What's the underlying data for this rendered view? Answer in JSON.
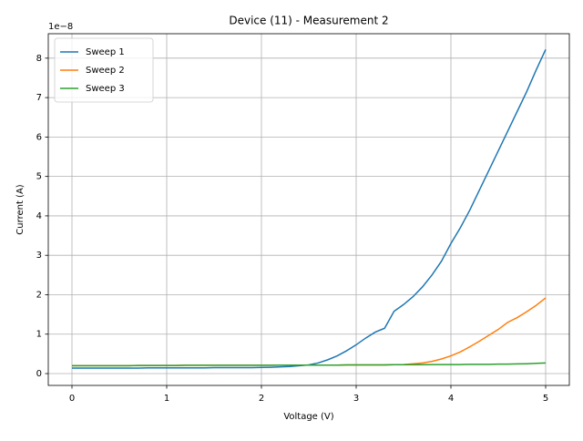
{
  "chart_data": {
    "type": "line",
    "title": "Device (11) - Measurement 2",
    "xlabel": "Voltage (V)",
    "ylabel": "Current (A)",
    "y_offset_label": "1e−8",
    "x": [
      0,
      0.1,
      0.2,
      0.3,
      0.4,
      0.5,
      0.6,
      0.7,
      0.8,
      0.9,
      1,
      1.1,
      1.2,
      1.3,
      1.4,
      1.5,
      1.6,
      1.7,
      1.8,
      1.9,
      2,
      2.1,
      2.2,
      2.3,
      2.4,
      2.5,
      2.6,
      2.7,
      2.8,
      2.9,
      3,
      3.1,
      3.2,
      3.3,
      3.4,
      3.5,
      3.6,
      3.7,
      3.8,
      3.9,
      4,
      4.1,
      4.2,
      4.3,
      4.4,
      4.5,
      4.6,
      4.7,
      4.8,
      4.9,
      5
    ],
    "series": [
      {
        "name": "Sweep 1",
        "color": "#1f77b4",
        "values": [
          0.14,
          0.14,
          0.14,
          0.14,
          0.14,
          0.14,
          0.14,
          0.14,
          0.145,
          0.145,
          0.145,
          0.145,
          0.145,
          0.145,
          0.145,
          0.15,
          0.15,
          0.15,
          0.15,
          0.15,
          0.155,
          0.16,
          0.17,
          0.18,
          0.2,
          0.22,
          0.27,
          0.35,
          0.45,
          0.58,
          0.73,
          0.9,
          1.05,
          1.15,
          1.58,
          1.75,
          1.95,
          2.2,
          2.5,
          2.85,
          3.3,
          3.7,
          4.15,
          4.65,
          5.15,
          5.65,
          6.15,
          6.65,
          7.15,
          7.7,
          8.22
        ]
      },
      {
        "name": "Sweep 2",
        "color": "#ff7f0e",
        "values": [
          0.2,
          0.2,
          0.2,
          0.2,
          0.2,
          0.2,
          0.2,
          0.205,
          0.205,
          0.205,
          0.205,
          0.205,
          0.21,
          0.21,
          0.21,
          0.21,
          0.21,
          0.21,
          0.21,
          0.21,
          0.21,
          0.21,
          0.215,
          0.215,
          0.215,
          0.215,
          0.215,
          0.215,
          0.215,
          0.22,
          0.22,
          0.22,
          0.22,
          0.22,
          0.225,
          0.23,
          0.25,
          0.27,
          0.31,
          0.37,
          0.45,
          0.55,
          0.68,
          0.82,
          0.97,
          1.12,
          1.3,
          1.42,
          1.57,
          1.73,
          1.92
        ]
      },
      {
        "name": "Sweep 3",
        "color": "#2ca02c",
        "values": [
          0.2,
          0.2,
          0.2,
          0.2,
          0.2,
          0.2,
          0.2,
          0.205,
          0.205,
          0.205,
          0.205,
          0.205,
          0.21,
          0.21,
          0.21,
          0.21,
          0.21,
          0.21,
          0.21,
          0.21,
          0.21,
          0.21,
          0.215,
          0.215,
          0.215,
          0.215,
          0.215,
          0.215,
          0.215,
          0.22,
          0.22,
          0.22,
          0.22,
          0.22,
          0.225,
          0.225,
          0.225,
          0.225,
          0.23,
          0.23,
          0.23,
          0.23,
          0.235,
          0.235,
          0.235,
          0.24,
          0.24,
          0.245,
          0.25,
          0.26,
          0.27
        ]
      }
    ],
    "xlim": [
      -0.25,
      5.25
    ],
    "xticks": [
      0,
      1,
      2,
      3,
      4,
      5
    ],
    "ylim": [
      -0.3,
      8.62
    ],
    "yticks": [
      0,
      1,
      2,
      3,
      4,
      5,
      6,
      7,
      8
    ],
    "grid": true,
    "legend": "upper left"
  }
}
